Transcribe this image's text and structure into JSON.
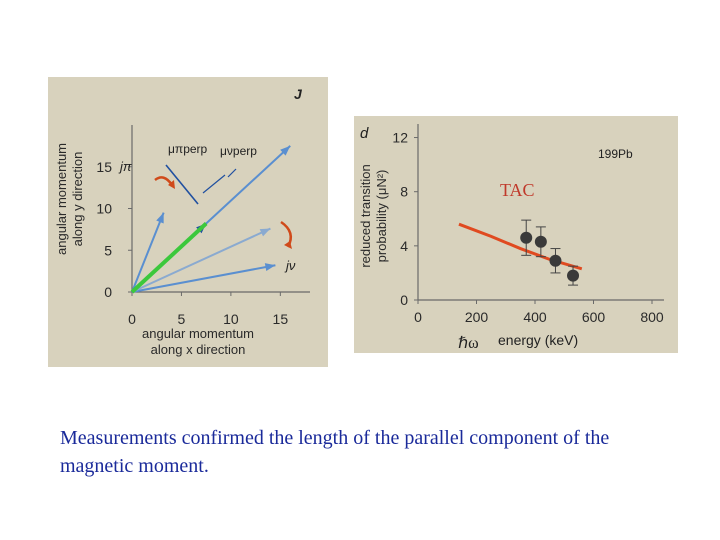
{
  "chart_data": [
    {
      "type": "vector-diagram",
      "xlabel_line1": "angular momentum",
      "xlabel_line2": "along x direction",
      "ylabel_line1": "angular momentum",
      "ylabel_line2": "along y direction",
      "xticks": [
        "0",
        "5",
        "10",
        "15"
      ],
      "yticks": [
        "0",
        "5",
        "10",
        "15"
      ],
      "xlim": [
        0,
        18
      ],
      "ylim": [
        0,
        20
      ],
      "vectors": [
        {
          "name": "J",
          "x": 16,
          "y": 17.5,
          "color": "#5a8fd0"
        },
        {
          "name": "jπ",
          "x": 3.2,
          "y": 9.5,
          "color": "#5a8fd0"
        },
        {
          "name": "jν",
          "x": 14.5,
          "y": 3.2,
          "color": "#5a8fd0"
        },
        {
          "name": "",
          "x": 14,
          "y": 7.6,
          "color": "#8aaad0"
        },
        {
          "name": "",
          "x": 7.5,
          "y": 8.2,
          "color": "#2050a0",
          "note": "parallel component"
        }
      ],
      "labels": {
        "J": "J",
        "j_pi": "jπ",
        "j_nu": "jν",
        "mu_pi": "μπperp",
        "mu_nu": "μνperp"
      },
      "colors": {
        "parallel": "#3cc83c",
        "vector": "#5a8fd0",
        "arrow_red": "#d04a1a",
        "background": "#d8d2bd"
      }
    },
    {
      "type": "line+scatter",
      "panel_label": "d",
      "ylabel_line1": "reduced transition",
      "ylabel_line2": "probability (μN²)",
      "xlabel": "energy (keV)",
      "isotope": "199Pb",
      "xticks": [
        "0",
        "200",
        "400",
        "600",
        "800"
      ],
      "yticks": [
        "0",
        "4",
        "8",
        "12"
      ],
      "xlim": [
        0,
        800
      ],
      "ylim": [
        0,
        13
      ],
      "series": [
        {
          "name": "TAC",
          "kind": "line",
          "color": "#e04a20",
          "x": [
            140,
            250,
            350,
            450,
            560
          ],
          "y": [
            5.6,
            4.7,
            3.8,
            3.0,
            2.3
          ]
        },
        {
          "name": "",
          "kind": "points",
          "color": "#3a3a3a",
          "x": [
            370,
            420,
            470,
            530
          ],
          "y": [
            4.6,
            4.3,
            2.9,
            1.8
          ],
          "err": [
            1.3,
            1.1,
            0.9,
            0.7
          ]
        }
      ],
      "annotation": "TAC",
      "hbar_omega": "ℏω"
    }
  ],
  "caption": "Measurements confirmed the length of the parallel component of the magnetic moment."
}
